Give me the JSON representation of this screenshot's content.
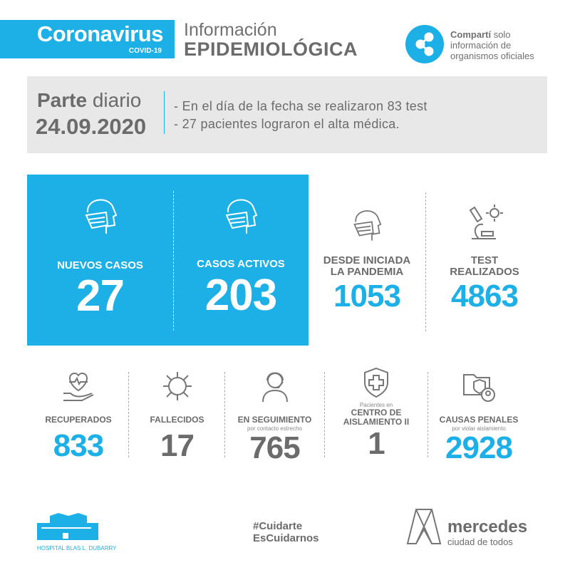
{
  "header": {
    "brand_title": "Coronavirus",
    "brand_subtitle": "COVID-19",
    "info_line1": "Información",
    "info_line2": "EPIDEMIOLÓGICA",
    "share_bold": "Compartí",
    "share_rest": "solo",
    "share_line2": "información de",
    "share_line3": "organismos oficiales"
  },
  "report": {
    "parte_bold": "Parte",
    "parte_rest": "diario",
    "date": "24.09.2020",
    "bullets": [
      "-  En el día de la fecha se realizaron 83 test",
      "-  27 pacientes lograron el alta médica."
    ]
  },
  "main_stats": [
    {
      "label": "NUEVOS CASOS",
      "value": "27",
      "icon": "face-mask-icon"
    },
    {
      "label": "CASOS ACTIVOS",
      "value": "203",
      "icon": "face-mask-icon"
    },
    {
      "label_line1": "DESDE INICIADA",
      "label_line2": "LA PANDEMIA",
      "value": "1053",
      "icon": "face-mask-icon"
    },
    {
      "label_line1": "TEST",
      "label_line2": "REALIZADOS",
      "value": "4863",
      "icon": "microscope-icon"
    }
  ],
  "secondary_stats": [
    {
      "label": "RECUPERADOS",
      "value": "833",
      "icon": "heart-hand-icon"
    },
    {
      "label": "FALLECIDOS",
      "value": "17",
      "icon": "virus-icon"
    },
    {
      "label": "EN SEGUIMIENTO",
      "sublabel": "por contacto estrecho",
      "value": "765",
      "icon": "headset-person-icon"
    },
    {
      "prelabel": "Pacientes en",
      "label_line1": "CENTRO DE",
      "label_line2": "AISLAMIENTO II",
      "value": "1",
      "icon": "shield-cross-icon"
    },
    {
      "label": "CAUSAS PENALES",
      "sublabel": "por violar aislamiento",
      "value": "2928",
      "icon": "folder-shield-icon"
    }
  ],
  "footer": {
    "hospital": "HOSPITAL BLAS L. DUBARRY",
    "hashtag_line1": "#Cuidarte",
    "hashtag_line2": "EsCuidarnos",
    "city_name": "mercedes",
    "city_tagline": "ciudad de todos"
  },
  "colors": {
    "accent": "#1cb0e6",
    "text": "#6b6b6b",
    "panel": "#e8e8e8"
  }
}
